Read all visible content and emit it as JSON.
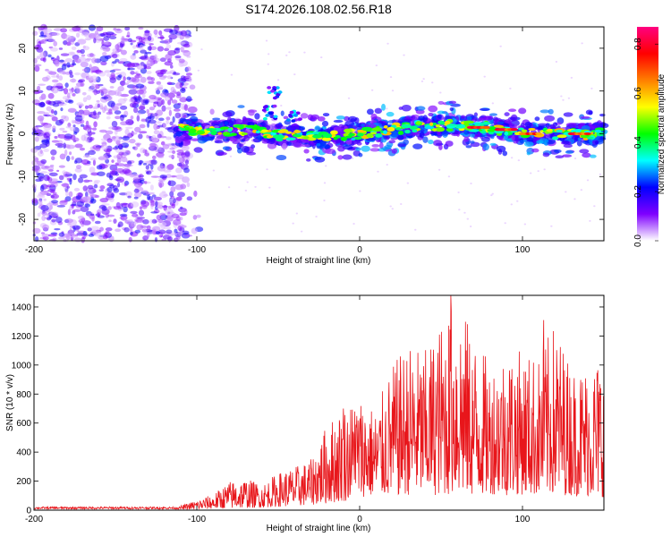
{
  "title": "S174.2026.108.02.56.R18",
  "chart_data": [
    {
      "type": "heatmap",
      "xlabel": "Height of straight line (km)",
      "ylabel": "Frequency (Hz)",
      "xlim": [
        -200,
        150
      ],
      "ylim": [
        -25,
        25
      ],
      "xticks": [
        -200,
        -100,
        0,
        100
      ],
      "yticks": [
        -20,
        -10,
        0,
        10,
        20
      ],
      "colorbar": {
        "label": "Normalized spectral amplitude",
        "range": [
          0,
          0.87
        ],
        "ticks": [
          0.0,
          0.2,
          0.4,
          0.6,
          0.8
        ],
        "tick_labels": [
          "0.0",
          "0.2",
          "0.4",
          "0.6",
          "0.8"
        ],
        "colormap": [
          "#ffffff",
          "#7f00ff",
          "#0000ff",
          "#00ffff",
          "#00ff00",
          "#ffff00",
          "#ff7f00",
          "#ff0000",
          "#ff0080"
        ]
      },
      "grid": false,
      "description_points": {
        "noise_region_x": [
          -200,
          -105
        ],
        "band_center_freq": [
          [
            -110,
            1
          ],
          [
            -90,
            0.5
          ],
          [
            -70,
            1
          ],
          [
            -55,
            0
          ],
          [
            -40,
            -0.5
          ],
          [
            -20,
            -1
          ],
          [
            0,
            0
          ],
          [
            20,
            1
          ],
          [
            40,
            2
          ],
          [
            60,
            2
          ],
          [
            80,
            1.5
          ],
          [
            100,
            0
          ],
          [
            120,
            0
          ],
          [
            150,
            0
          ]
        ],
        "peak_segments": [
          [
            73,
            1.5
          ],
          [
            90,
            1
          ],
          [
            105,
            0
          ],
          [
            135,
            0
          ]
        ],
        "side_feature": [
          [
            -52,
            9.5
          ],
          [
            -55,
            5
          ],
          [
            -40,
            4
          ]
        ]
      }
    },
    {
      "type": "line",
      "xlabel": "Height of straight line (km)",
      "ylabel": "SNR (10 * v/v)",
      "xlim": [
        -200,
        150
      ],
      "ylim": [
        0,
        1480
      ],
      "xticks": [
        -200,
        -100,
        0,
        100
      ],
      "yticks": [
        0,
        200,
        400,
        600,
        800,
        1000,
        1200,
        1400
      ],
      "color": "#e8161b",
      "grid": false,
      "envelope": {
        "x": [
          -200,
          -150,
          -110,
          -100,
          -90,
          -80,
          -70,
          -60,
          -50,
          -40,
          -30,
          -20,
          -10,
          0,
          10,
          20,
          30,
          40,
          50,
          60,
          70,
          80,
          90,
          100,
          110,
          120,
          130,
          140,
          150
        ],
        "baseline": [
          15,
          15,
          15,
          20,
          30,
          40,
          50,
          60,
          80,
          90,
          120,
          150,
          200,
          300,
          330,
          320,
          350,
          330,
          350,
          360,
          330,
          370,
          340,
          360,
          340,
          350,
          340,
          320,
          300
        ],
        "peak": [
          45,
          40,
          30,
          70,
          110,
          200,
          220,
          180,
          260,
          300,
          350,
          600,
          720,
          790,
          700,
          1000,
          1150,
          1100,
          1300,
          1480,
          1200,
          1020,
          1130,
          1100,
          1060,
          1300,
          990,
          1010,
          1100
        ]
      },
      "notable_peaks": [
        [
          -10,
          700
        ],
        [
          56,
          1480
        ],
        [
          113,
          1310
        ],
        [
          -3,
          680
        ]
      ]
    }
  ]
}
